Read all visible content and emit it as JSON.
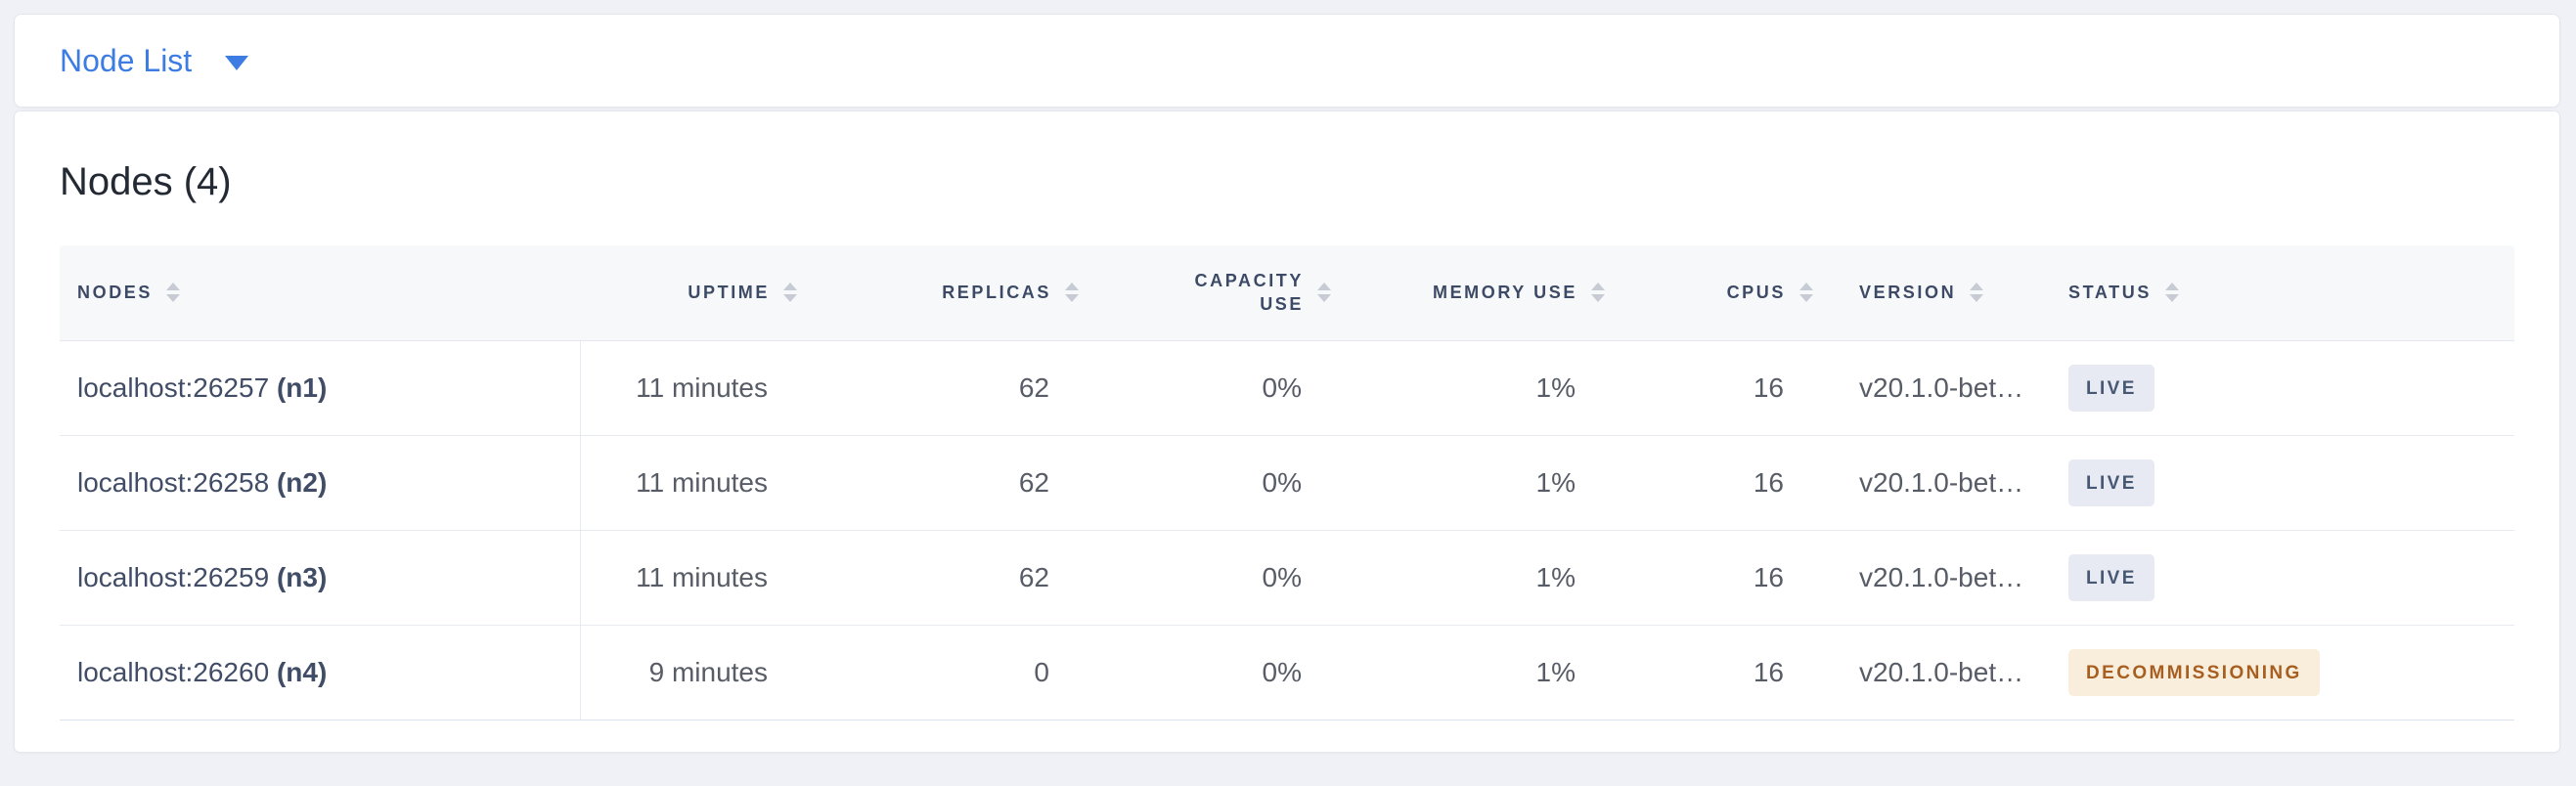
{
  "toolbar": {
    "view_dropdown": {
      "label": "Node List"
    }
  },
  "main": {
    "title": "Nodes (4)",
    "table": {
      "columns": [
        {
          "label": "NODES",
          "align": "left"
        },
        {
          "label": "UPTIME",
          "align": "right"
        },
        {
          "label": "REPLICAS",
          "align": "right"
        },
        {
          "label": "CAPACITY USE",
          "align": "right"
        },
        {
          "label": "MEMORY USE",
          "align": "right"
        },
        {
          "label": "CPUS",
          "align": "right"
        },
        {
          "label": "VERSION",
          "align": "left"
        },
        {
          "label": "STATUS",
          "align": "left"
        }
      ],
      "rows": [
        {
          "address": "localhost:26257",
          "node_id": "(n1)",
          "uptime": "11 minutes",
          "replicas": "62",
          "capacity_use": "0%",
          "memory_use": "1%",
          "cpus": "16",
          "version": "v20.1.0-bet…",
          "status": "LIVE",
          "status_variant": "live"
        },
        {
          "address": "localhost:26258",
          "node_id": "(n2)",
          "uptime": "11 minutes",
          "replicas": "62",
          "capacity_use": "0%",
          "memory_use": "1%",
          "cpus": "16",
          "version": "v20.1.0-bet…",
          "status": "LIVE",
          "status_variant": "live"
        },
        {
          "address": "localhost:26259",
          "node_id": "(n3)",
          "uptime": "11 minutes",
          "replicas": "62",
          "capacity_use": "0%",
          "memory_use": "1%",
          "cpus": "16",
          "version": "v20.1.0-bet…",
          "status": "LIVE",
          "status_variant": "live"
        },
        {
          "address": "localhost:26260",
          "node_id": "(n4)",
          "uptime": "9 minutes",
          "replicas": "0",
          "capacity_use": "0%",
          "memory_use": "1%",
          "cpus": "16",
          "version": "v20.1.0-bet…",
          "status": "DECOMMISSIONING",
          "status_variant": "decommissioning"
        }
      ]
    }
  },
  "icons": {
    "dropdown_caret": "caret-down-icon",
    "column_sort": "sort-icon"
  },
  "colors": {
    "accent_blue": "#3d7ce3",
    "page_background": "#eff1f6",
    "header_text": "#3c4a66",
    "badge_live_bg": "#e7eaf2",
    "badge_live_text": "#475872",
    "badge_decommissioning_bg": "#f9eedb",
    "badge_decommissioning_text": "#a65e21"
  }
}
